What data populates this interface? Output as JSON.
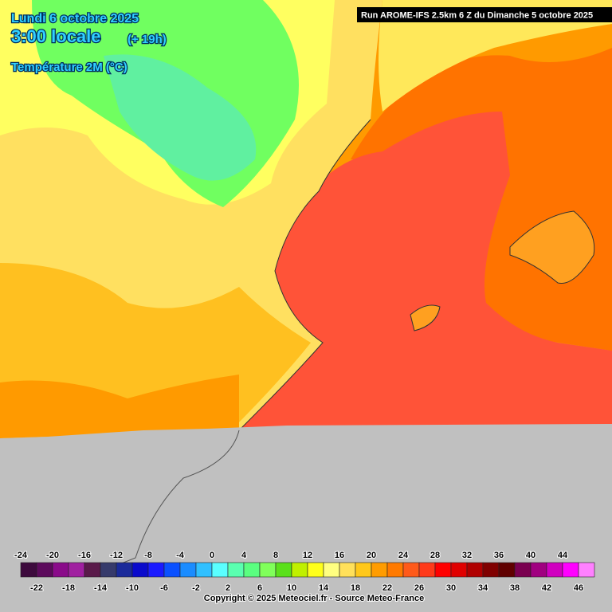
{
  "header": {
    "date": "Lundi 6 octobre 2025",
    "time": "3:00 locale",
    "lead": "(+ 19h)",
    "variable": "Température 2M (°C)",
    "run": "Run AROME-IFS 2.5km 6 Z du Dimanche 5 octobre 2025"
  },
  "legend": {
    "colors": [
      "#3d0a3d",
      "#5c0a5c",
      "#8a0a8a",
      "#a020a0",
      "#5a1a4a",
      "#363a6b",
      "#1a2a9a",
      "#0a0acc",
      "#1a1aff",
      "#0a50ff",
      "#1a8cff",
      "#30c0ff",
      "#5affff",
      "#5affb0",
      "#5aff80",
      "#80ff5a",
      "#5ae01a",
      "#c0f000",
      "#ffff1a",
      "#ffff80",
      "#ffe05a",
      "#ffc81a",
      "#ff9c00",
      "#ff7a00",
      "#ff5a1a",
      "#ff3a1a",
      "#ff0000",
      "#e00000",
      "#b00000",
      "#800000",
      "#600000",
      "#7a0050",
      "#a00080",
      "#d000c0",
      "#ff00ff",
      "#ff80ff"
    ],
    "top_labels": [
      "-24",
      "-20",
      "-16",
      "-12",
      "-8",
      "-4",
      "0",
      "4",
      "8",
      "12",
      "16",
      "20",
      "24",
      "28",
      "32",
      "36",
      "40",
      "44"
    ],
    "bottom_labels": [
      "-22",
      "-18",
      "-14",
      "-10",
      "-6",
      "-2",
      "2",
      "6",
      "10",
      "14",
      "18",
      "22",
      "26",
      "30",
      "34",
      "38",
      "42",
      "46"
    ]
  },
  "footer": {
    "copyright": "Copyright © 2025 Meteociel.fr - Source Meteo-France"
  }
}
